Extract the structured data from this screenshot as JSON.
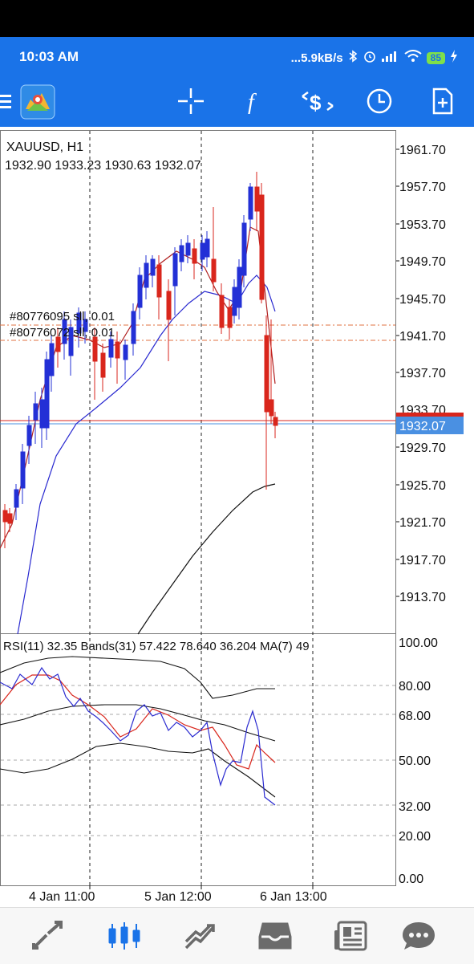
{
  "status_bar": {
    "time": "10:03 AM",
    "net_speed": "...5.9kB/s",
    "battery": "85"
  },
  "toolbar": {
    "icons": [
      "menu-icon",
      "metatrader-logo",
      "crosshair-icon",
      "function-icon",
      "trade-icon",
      "clock-icon",
      "template-icon"
    ]
  },
  "chart": {
    "symbol": "XAUUSD, H1",
    "ohlc": "1932.90 1933.23 1930.63 1932.07",
    "current_price": "1932.07",
    "price_axis": [
      "1961.70",
      "1957.70",
      "1953.70",
      "1949.70",
      "1945.70",
      "1941.70",
      "1937.70",
      "1933.70",
      "1929.70",
      "1925.70",
      "1921.70",
      "1917.70",
      "1913.70"
    ],
    "orders": [
      "#80776095 sll, 0.01",
      "#80776072 sll, 0.01"
    ],
    "colors": {
      "bull": "#2330d6",
      "bear": "#d9261c",
      "ma_fast": "#b02020",
      "ma_mid": "#2a2ad0",
      "ma_slow": "#111111",
      "bid_line": "#d9261c",
      "ask_line": "#4a90e2",
      "order_line": "#e07040"
    }
  },
  "indicator": {
    "label": "RSI(11) 32.35 Bands(31) 57.422 78.640 36.204 MA(7) 49",
    "axis": [
      "100.00",
      "80.00",
      "68.00",
      "50.00",
      "32.00",
      "20.00",
      "0.00"
    ],
    "colors": {
      "rsi": "#2a2ad0",
      "ma": "#d9261c",
      "bands": "#111111"
    }
  },
  "time_axis": [
    "4 Jan 11:00",
    "5 Jan 12:00",
    "6 Jan 13:00"
  ],
  "bottom_nav": {
    "items": [
      "quotes-icon",
      "chart-icon",
      "trade-icon",
      "history-icon",
      "news-icon",
      "chat-icon"
    ],
    "active": "chart-icon",
    "active_color": "#1a73e8",
    "inactive_color": "#6b6b6b"
  }
}
